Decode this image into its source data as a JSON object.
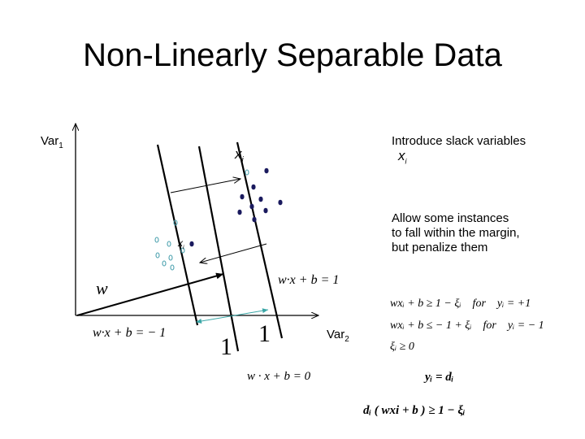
{
  "title": "Non-Linearly Separable Data",
  "axes": {
    "y_label": "Var",
    "y_sub": "1",
    "x_label": "Var",
    "x_sub": "2"
  },
  "diagram": {
    "weight_label": "w",
    "xi_label_top": "x",
    "xi_label_top_sub": "i",
    "xi_label_small": "x",
    "xi_label_small_sub": "i",
    "plane_upper": "w·x + b = 1",
    "plane_lower": "w·x + b = − 1",
    "plane_middle": "w · x + b = 0",
    "margin_left": "1",
    "margin_right": "1"
  },
  "notes": {
    "slack_intro": "Introduce slack variables",
    "slack_symbol": "x",
    "slack_symbol_sub": "i",
    "allow_text": "Allow some instances to fall within the margin, but penalize them"
  },
  "constraints": {
    "line1": "wxᵢ + b ≥ 1 − ξᵢ    for    yᵢ = +1",
    "line2": "wxᵢ + b ≤ − 1 + ξᵢ    for    yᵢ = − 1",
    "line3": "ξᵢ ≥ 0",
    "yd": "yᵢ = dᵢ",
    "final": "dᵢ ( wxi + b ) ≥ 1 − ξᵢ"
  },
  "colors": {
    "positive_point": "#1a1a5e",
    "negative_point": "#4fa3b0",
    "margin_arrow": "#3aa6a6"
  }
}
